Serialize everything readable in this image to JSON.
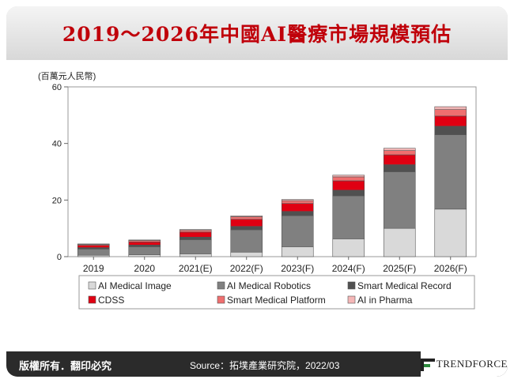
{
  "header": {
    "title": "2019～2026年中國AI醫療市場規模預估"
  },
  "footer": {
    "copyright": "版權所有．翻印必究",
    "source": "Source：拓墣產業研究院，2022/03",
    "brand": "TRENDFORCE"
  },
  "colors": {
    "title": "#c0000a",
    "series": [
      "#d9d9d9",
      "#808080",
      "#505050",
      "#e00012",
      "#ef6f6f",
      "#f5b7b7"
    ]
  },
  "chart_data": {
    "type": "bar",
    "stacked": true,
    "title": "2019～2026年中國AI醫療市場規模預估",
    "ylabel": "(百萬元人民幣)",
    "xlabel": "",
    "ylim": [
      0,
      60
    ],
    "yticks": [
      0,
      20,
      40,
      60
    ],
    "legend_position": "bottom",
    "categories": [
      "2019",
      "2020",
      "2021(E)",
      "2022(F)",
      "2023(F)",
      "2024(F)",
      "2025(F)",
      "2026(F)"
    ],
    "series": [
      {
        "name": "AI Medical Image",
        "values": [
          0.5,
          0.7,
          1.0,
          1.6,
          3.5,
          6.3,
          10.0,
          16.8
        ]
      },
      {
        "name": "AI Medical Robotics",
        "values": [
          2.2,
          2.8,
          5.0,
          7.9,
          11.0,
          15.2,
          20.0,
          26.3
        ]
      },
      {
        "name": "Smart Medical Record",
        "values": [
          0.5,
          0.6,
          0.9,
          1.2,
          1.5,
          2.0,
          2.5,
          3.0
        ]
      },
      {
        "name": "CDSS",
        "values": [
          0.8,
          1.1,
          1.8,
          2.5,
          2.8,
          3.3,
          3.5,
          3.6
        ]
      },
      {
        "name": "Smart Medical Platform",
        "values": [
          0.3,
          0.5,
          0.6,
          0.9,
          1.0,
          1.4,
          1.5,
          2.3
        ]
      },
      {
        "name": "AI in Pharma",
        "values": [
          0.2,
          0.2,
          0.3,
          0.3,
          0.4,
          0.6,
          0.8,
          1.0
        ]
      }
    ]
  }
}
